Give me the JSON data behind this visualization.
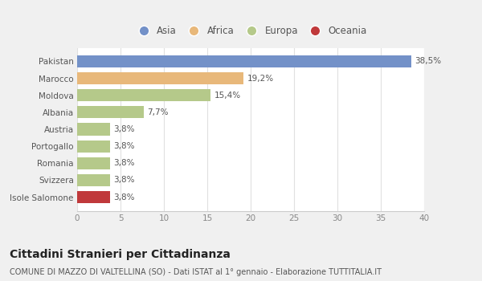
{
  "categories": [
    "Isole Salomone",
    "Svizzera",
    "Romania",
    "Portogallo",
    "Austria",
    "Albania",
    "Moldova",
    "Marocco",
    "Pakistan"
  ],
  "values": [
    3.8,
    3.8,
    3.8,
    3.8,
    3.8,
    7.7,
    15.4,
    19.2,
    38.5
  ],
  "labels": [
    "3,8%",
    "3,8%",
    "3,8%",
    "3,8%",
    "3,8%",
    "7,7%",
    "15,4%",
    "19,2%",
    "38,5%"
  ],
  "colors": [
    "#c0393b",
    "#b5c98a",
    "#b5c98a",
    "#b5c98a",
    "#b5c98a",
    "#b5c98a",
    "#b5c98a",
    "#e8b87a",
    "#7391c8"
  ],
  "legend_labels": [
    "Asia",
    "Africa",
    "Europa",
    "Oceania"
  ],
  "legend_colors": [
    "#7391c8",
    "#e8b87a",
    "#b5c98a",
    "#c0393b"
  ],
  "xlim": [
    0,
    40
  ],
  "xticks": [
    0,
    5,
    10,
    15,
    20,
    25,
    30,
    35,
    40
  ],
  "title": "Cittadini Stranieri per Cittadinanza",
  "subtitle": "COMUNE DI MAZZO DI VALTELLINA (SO) - Dati ISTAT al 1° gennaio - Elaborazione TUTTITALIA.IT",
  "background_color": "#f0f0f0",
  "plot_bg_color": "#ffffff",
  "grid_color": "#e0e0e0",
  "bar_height": 0.72,
  "label_fontsize": 7.5,
  "tick_fontsize": 7.5,
  "title_fontsize": 10,
  "subtitle_fontsize": 7
}
